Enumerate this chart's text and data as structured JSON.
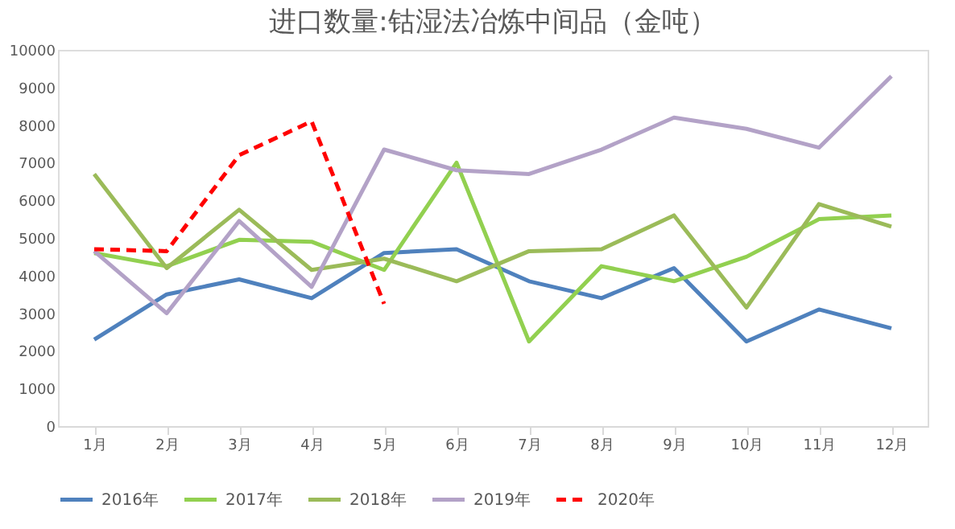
{
  "chart_data": {
    "type": "line",
    "title": "进口数量:钴湿法冶炼中间品（金吨）",
    "categories": [
      "1月",
      "2月",
      "3月",
      "4月",
      "5月",
      "6月",
      "7月",
      "8月",
      "9月",
      "10月",
      "11月",
      "12月"
    ],
    "series": [
      {
        "name": "2016年",
        "color": "#4f81bd",
        "values": [
          2300,
          3500,
          3900,
          3400,
          4600,
          4700,
          3850,
          3400,
          4200,
          2250,
          3100,
          2600
        ]
      },
      {
        "name": "2017年",
        "color": "#92d050",
        "values": [
          4600,
          4250,
          4950,
          4900,
          4150,
          7000,
          2250,
          4250,
          3850,
          4500,
          5500,
          5600
        ]
      },
      {
        "name": "2018年",
        "color": "#9bbb59",
        "values": [
          6700,
          4200,
          5750,
          4150,
          4450,
          3850,
          4650,
          4700,
          5600,
          3150,
          5900,
          5300
        ]
      },
      {
        "name": "2019年",
        "color": "#b3a2c7",
        "values": [
          4650,
          3000,
          5450,
          3700,
          7350,
          6800,
          6700,
          7350,
          8200,
          7900,
          7400,
          9300
        ]
      },
      {
        "name": "2020年",
        "color": "#ff0000",
        "line_style": "dashed",
        "values": [
          4700,
          4650,
          7200,
          8100,
          3250,
          null,
          null,
          null,
          null,
          null,
          null,
          null
        ]
      }
    ],
    "ylim": [
      0,
      10000
    ],
    "yticks": [
      0,
      1000,
      2000,
      3000,
      4000,
      5000,
      6000,
      7000,
      8000,
      9000,
      10000
    ],
    "grid": false,
    "legend": "bottom",
    "line_style": "solid",
    "marker": "none"
  }
}
